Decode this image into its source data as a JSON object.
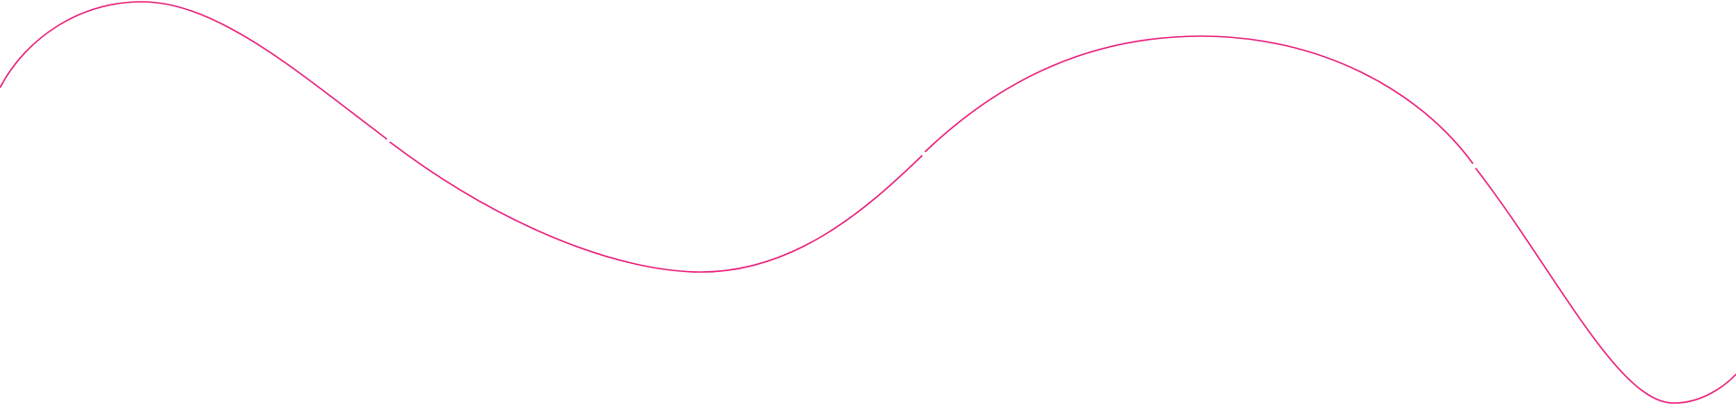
{
  "decoration": {
    "shape": "wavy-line",
    "stroke_color": "#e91e7a",
    "background_color": "#ffffff"
  }
}
